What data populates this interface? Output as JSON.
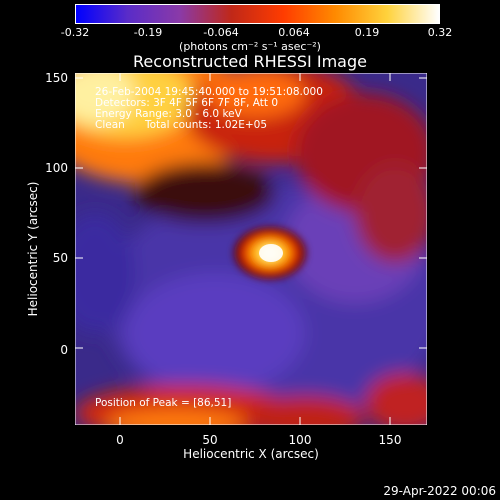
{
  "title": "Reconstructed RHESSI Image",
  "colorbar": {
    "ticks": [
      "-0.32",
      "-0.19",
      "-0.064",
      "0.064",
      "0.19",
      "0.32"
    ],
    "unit_line": "(photons cm⁻² s⁻¹ asec⁻²)",
    "colors": [
      "#0000ff",
      "#5a2cc8",
      "#8a3aa8",
      "#c02818",
      "#ff3c00",
      "#ff8a00",
      "#ffd23c",
      "#ffffff"
    ]
  },
  "info": {
    "time_range": "26-Feb-2004 19:45:40.000 to 19:51:08.000",
    "detectors": "Detectors: 3F 4F 5F 6F 7F 8F, Att 0",
    "energy": "Energy Range: 3.0 - 6.0 keV",
    "algorithm": "Clean",
    "total_counts": "Total counts: 1.02E+05"
  },
  "peak_label": "Position of Peak = [86,51]",
  "axes": {
    "xlabel": "Heliocentric X (arcsec)",
    "ylabel": "Heliocentric Y (arcsec)",
    "xticks": [
      "0",
      "50",
      "100",
      "150"
    ],
    "yticks": [
      "150",
      "100",
      "50",
      "0"
    ],
    "xlim": [
      -25,
      170
    ],
    "ylim": [
      -40,
      155
    ]
  },
  "footer_date": "29-Apr-2022 00:06"
}
